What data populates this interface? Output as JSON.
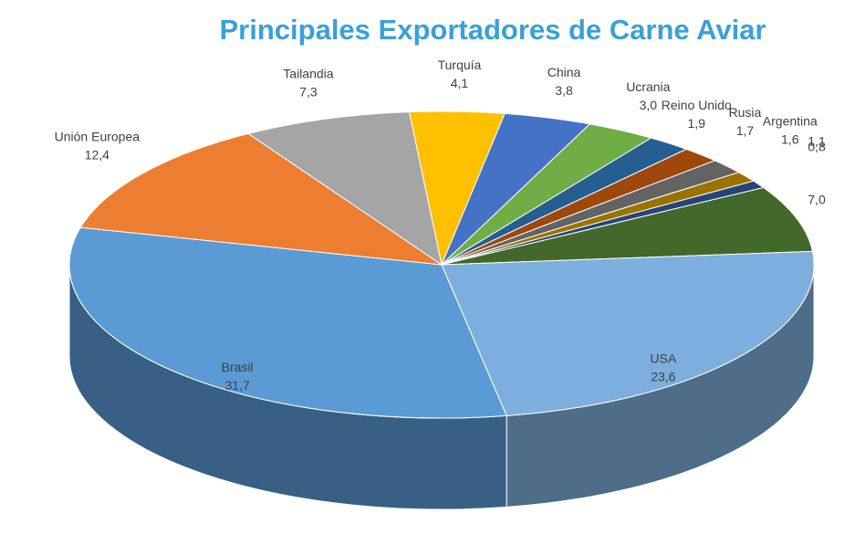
{
  "chart_data": {
    "type": "pie3d",
    "title": "Principales Exportadores de Carne Aviar",
    "categories": [
      "Turquía",
      "China",
      "Ucrania",
      "Reino Unido",
      "Rusia",
      "Argentina",
      null,
      null,
      null,
      "USA",
      "Brasil",
      "Unión Europea",
      "Tailandia"
    ],
    "values": [
      4.1,
      3.8,
      3.0,
      1.9,
      1.7,
      1.6,
      1.1,
      0.8,
      7.0,
      23.6,
      31.7,
      12.4,
      7.3
    ],
    "value_labels": [
      "4,1",
      "3,8",
      "3,0",
      "1,9",
      "1,7",
      "1,6",
      "1,1",
      "0,8",
      "7,0",
      "23,6",
      "31,7",
      "12,4",
      "7,3"
    ],
    "colors": [
      "#ffc000",
      "#4472c4",
      "#70ad47",
      "#255e91",
      "#9e480e",
      "#636363",
      "#997300",
      "#264478",
      "#43682b",
      "#7cafdd",
      "#5b9bd5",
      "#ed7d31",
      "#a5a5a5"
    ]
  }
}
